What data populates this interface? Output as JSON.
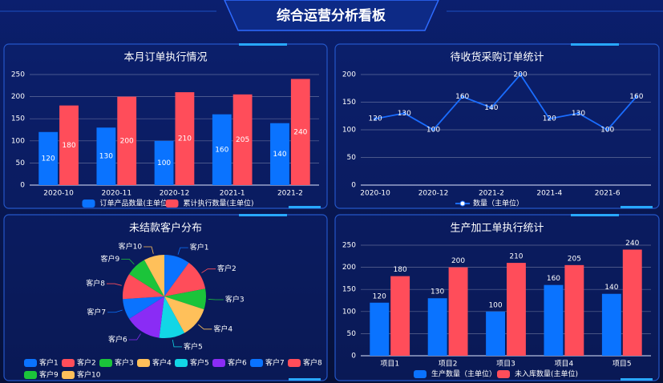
{
  "title": "综合运营分析看板",
  "chart_data": [
    {
      "type": "bar",
      "title": "本月订单执行情况",
      "categories": [
        "2020-10",
        "2020-11",
        "2020-12",
        "2021-1",
        "2021-2"
      ],
      "series": [
        {
          "name": "订单产品数量(主单位)",
          "color": "#0a73ff",
          "values": [
            120,
            130,
            100,
            160,
            140
          ]
        },
        {
          "name": "累计执行数量(主单位)",
          "color": "#ff4d5a",
          "values": [
            180,
            200,
            210,
            205,
            240
          ]
        }
      ],
      "ylim": [
        0,
        250
      ],
      "yticks": [
        0,
        50,
        100,
        150,
        200,
        250
      ],
      "grid": true,
      "label_position": "inside"
    },
    {
      "type": "line",
      "title": "待收货采购订单统计",
      "categories": [
        "2020-10",
        null,
        "2020-12",
        null,
        "2021-2",
        null,
        "2021-4",
        null,
        "2021-6",
        null
      ],
      "series": [
        {
          "name": "数量（主单位）",
          "color": "#1a6dff",
          "values": [
            120,
            130,
            100,
            160,
            140,
            200,
            120,
            130,
            100,
            160
          ]
        }
      ],
      "ylim": [
        0,
        200
      ],
      "yticks": [
        0,
        50,
        100,
        150,
        200
      ],
      "grid": true
    },
    {
      "type": "pie",
      "title": "未结款客户分布",
      "categories": [
        "客户1",
        "客户2",
        "客户3",
        "客户4",
        "客户5",
        "客户6",
        "客户7",
        "客户8",
        "客户9",
        "客户10"
      ],
      "values": [
        10,
        12,
        8,
        12,
        10,
        14,
        8,
        10,
        8,
        8
      ],
      "colors": [
        "#0a73ff",
        "#ff4d5a",
        "#1bc43a",
        "#ffc05a",
        "#12d6e6",
        "#8a2cf5",
        "#0a73ff",
        "#ff4d5a",
        "#1bc43a",
        "#ffc05a"
      ]
    },
    {
      "type": "bar",
      "title": "生产加工单执行统计",
      "categories": [
        "项目1",
        "项目2",
        "项目3",
        "项目4",
        "项目5"
      ],
      "series": [
        {
          "name": "生产数量（主单位）",
          "color": "#0a73ff",
          "values": [
            120,
            130,
            100,
            160,
            140
          ]
        },
        {
          "name": "未入库数量(主单位)",
          "color": "#ff4d5a",
          "values": [
            180,
            200,
            210,
            205,
            240
          ]
        }
      ],
      "ylim": [
        0,
        250
      ],
      "yticks": [
        0,
        50,
        100,
        150,
        200,
        250
      ],
      "grid": true,
      "label_position": "top"
    }
  ]
}
